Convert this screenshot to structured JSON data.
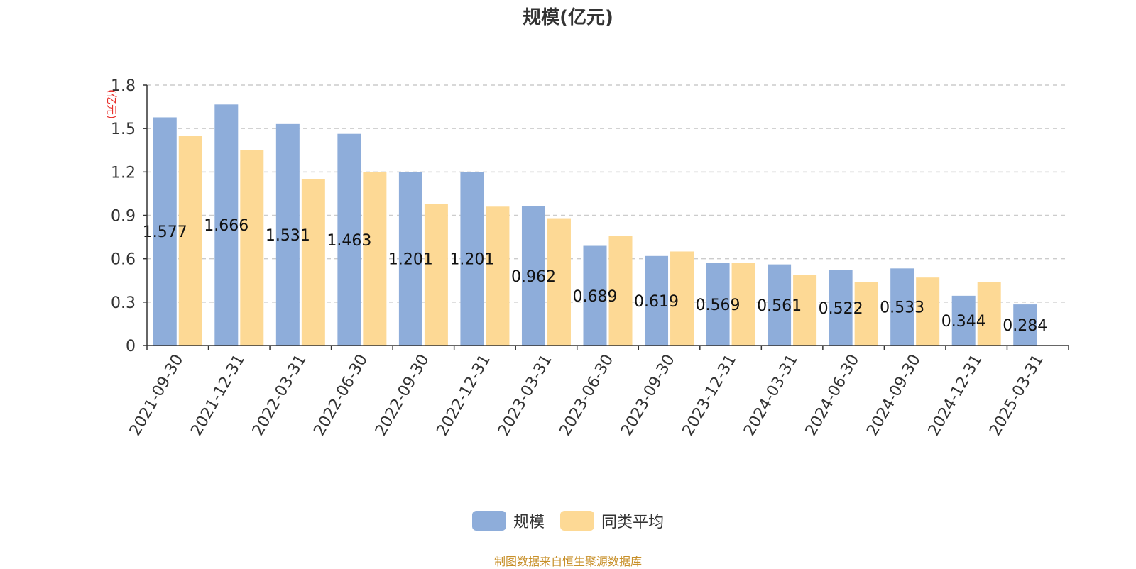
{
  "chart_data": {
    "type": "bar",
    "title": "规模(亿元)",
    "ylabel": "(亿元)",
    "categories": [
      "2021-09-30",
      "2021-12-31",
      "2022-03-31",
      "2022-06-30",
      "2022-09-30",
      "2022-12-31",
      "2023-03-31",
      "2023-06-30",
      "2023-09-30",
      "2023-12-31",
      "2024-03-31",
      "2024-06-30",
      "2024-09-30",
      "2024-12-31",
      "2025-03-31"
    ],
    "series": [
      {
        "name": "规模",
        "color": "#8eadda",
        "values": [
          1.577,
          1.666,
          1.531,
          1.463,
          1.201,
          1.201,
          0.962,
          0.689,
          0.619,
          0.569,
          0.561,
          0.522,
          0.533,
          0.344,
          0.284
        ],
        "labels": [
          "1.577",
          "1.666",
          "1.531",
          "1.463",
          "1.201",
          "1.201",
          "0.962",
          "0.689",
          "0.619",
          "0.569",
          "0.561",
          "0.522",
          "0.533",
          "0.344",
          "0.284"
        ]
      },
      {
        "name": "同类平均",
        "color": "#fdd995",
        "values": [
          1.45,
          1.35,
          1.15,
          1.2,
          0.98,
          0.96,
          0.88,
          0.76,
          0.65,
          0.57,
          0.49,
          0.44,
          0.47,
          0.44,
          null
        ]
      }
    ],
    "ylim": [
      0,
      1.8
    ],
    "yticks": [
      "0",
      "0.3",
      "0.6",
      "0.9",
      "1.2",
      "1.5",
      "1.8"
    ],
    "grid": true,
    "legend_position": "bottom-center"
  },
  "source_note": "制图数据来自恒生聚源数据库",
  "colors": {
    "axis": "#333333",
    "grid": "#cccccc",
    "ylabel": "#e8302b",
    "source": "#c8902a"
  }
}
